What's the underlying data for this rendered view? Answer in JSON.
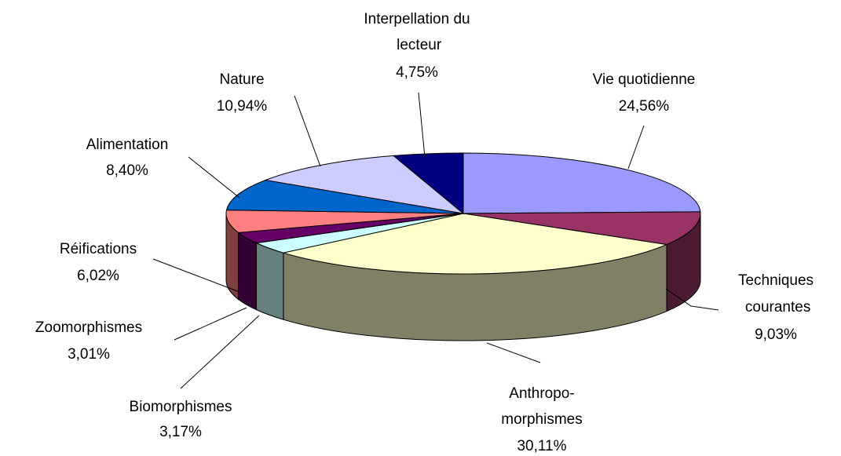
{
  "chart_data": {
    "type": "pie",
    "style": "3d",
    "categories": [
      "Vie quotidienne",
      "Techniques courantes",
      "Anthropo-morphismes",
      "Biomorphismes",
      "Zoomorphismes",
      "Réifications",
      "Alimentation",
      "Nature",
      "Interpellation du lecteur"
    ],
    "values": [
      24.56,
      9.03,
      30.11,
      3.17,
      3.01,
      6.02,
      8.4,
      10.94,
      4.75
    ],
    "value_labels": [
      "24,56%",
      "9,03%",
      "30,11%",
      "3,17%",
      "3,01%",
      "6,02%",
      "8,40%",
      "10,94%",
      "4,75%"
    ],
    "colors": [
      "#9999ff",
      "#993366",
      "#ffffcc",
      "#ccffff",
      "#660066",
      "#ff8080",
      "#0066cc",
      "#ccccff",
      "#000080"
    ]
  }
}
